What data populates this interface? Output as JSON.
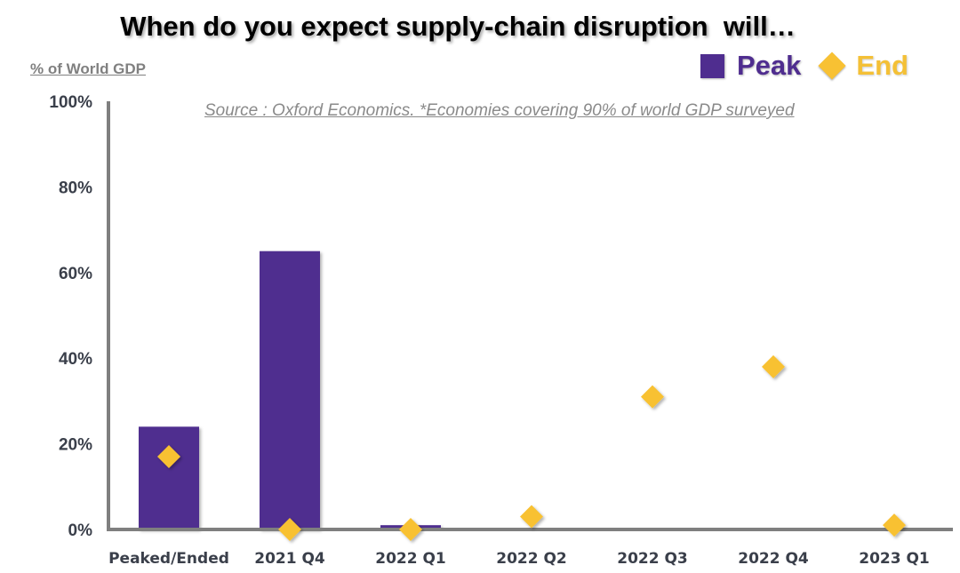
{
  "chart_data": {
    "type": "bar",
    "title": "When do you expect supply-chain disruption  will…",
    "ylabel": "% of World GDP",
    "xlabel": "",
    "source_note": "Source : Oxford Economics. *Economies covering 90% of world GDP surveyed",
    "ylim": [
      0,
      100
    ],
    "yticks": [
      0,
      20,
      40,
      60,
      80,
      100
    ],
    "ytick_labels": [
      "0%",
      "20%",
      "40%",
      "60%",
      "80%",
      "100%"
    ],
    "grid": false,
    "legend_position": "top-right",
    "categories": [
      "Peaked/Ended",
      "2021 Q4",
      "2022 Q1",
      "2022 Q2",
      "2022 Q3",
      "2022 Q4",
      "2023 Q1"
    ],
    "series": [
      {
        "name": "Peak",
        "type": "bar",
        "marker": "square",
        "color": "#4f2d8f",
        "values": [
          24,
          65,
          1,
          0,
          0,
          0,
          0
        ]
      },
      {
        "name": "End",
        "type": "scatter",
        "marker": "diamond",
        "color": "#f8c133",
        "values": [
          17,
          0,
          0,
          3,
          31,
          38,
          1
        ]
      }
    ]
  },
  "legend": {
    "peak_label": "Peak",
    "end_label": "End"
  }
}
